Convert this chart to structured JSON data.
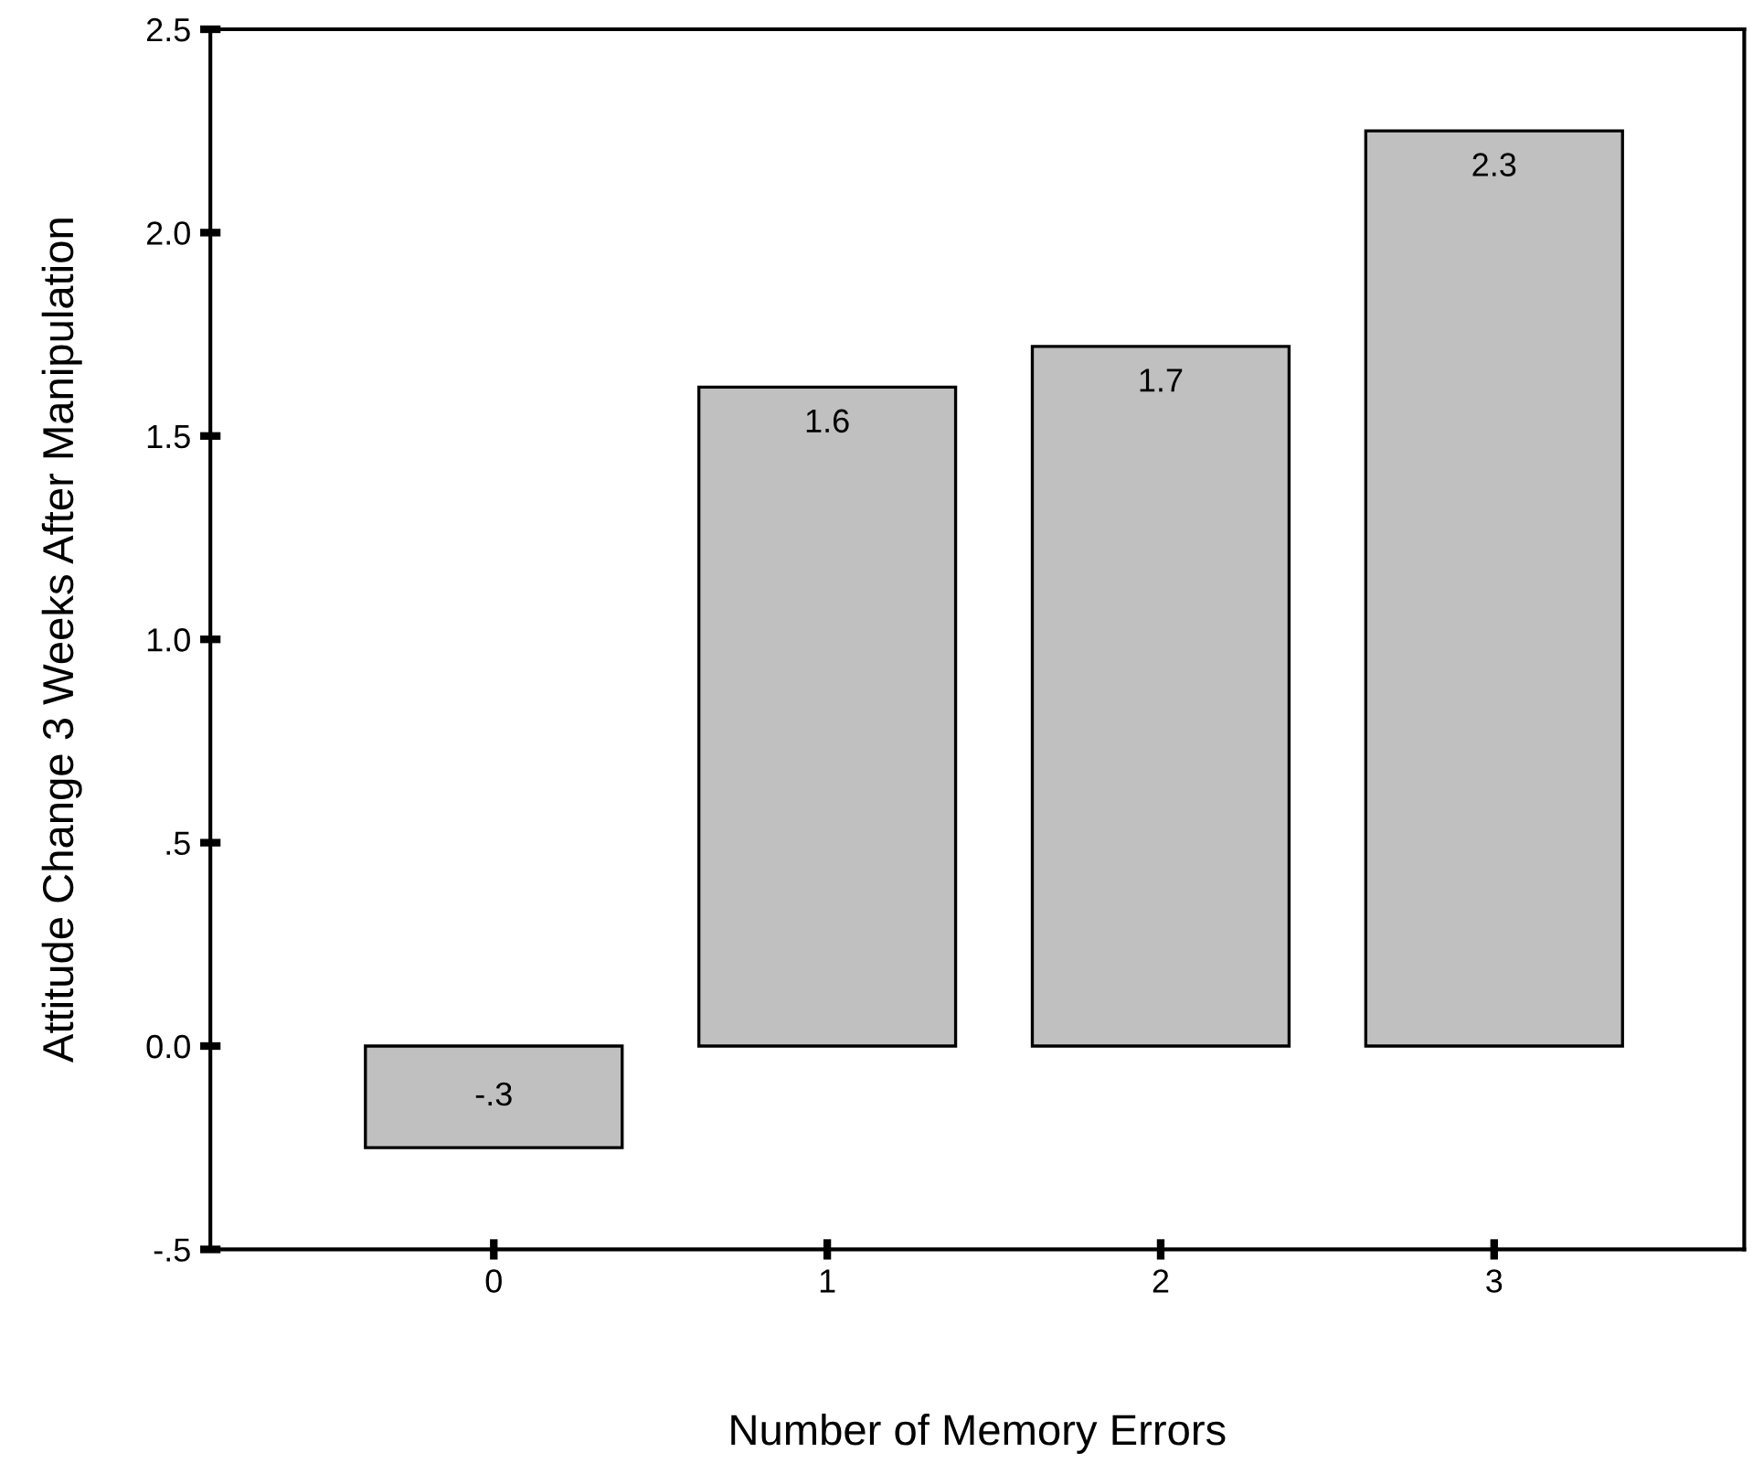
{
  "chart_data": {
    "type": "bar",
    "xlabel": "Number of Memory Errors",
    "ylabel": "Attitude Change 3 Weeks After Manipulation",
    "categories": [
      "0",
      "1",
      "2",
      "3"
    ],
    "values": [
      -0.25,
      1.62,
      1.72,
      2.25
    ],
    "value_labels": [
      "-.3",
      "1.6",
      "1.7",
      "2.3"
    ],
    "color": "#c0c0c0",
    "ylim": [
      -0.5,
      2.5
    ],
    "yticks": [
      {
        "value": -0.5,
        "label": "-.5"
      },
      {
        "value": 0,
        "label": "0.0"
      },
      {
        "value": 0.5,
        "label": ".5"
      },
      {
        "value": 1,
        "label": "1.0"
      },
      {
        "value": 1.5,
        "label": "1.5"
      },
      {
        "value": 2,
        "label": "2.0"
      },
      {
        "value": 2.5,
        "label": "2.5"
      }
    ],
    "grid": false,
    "legend": false
  }
}
